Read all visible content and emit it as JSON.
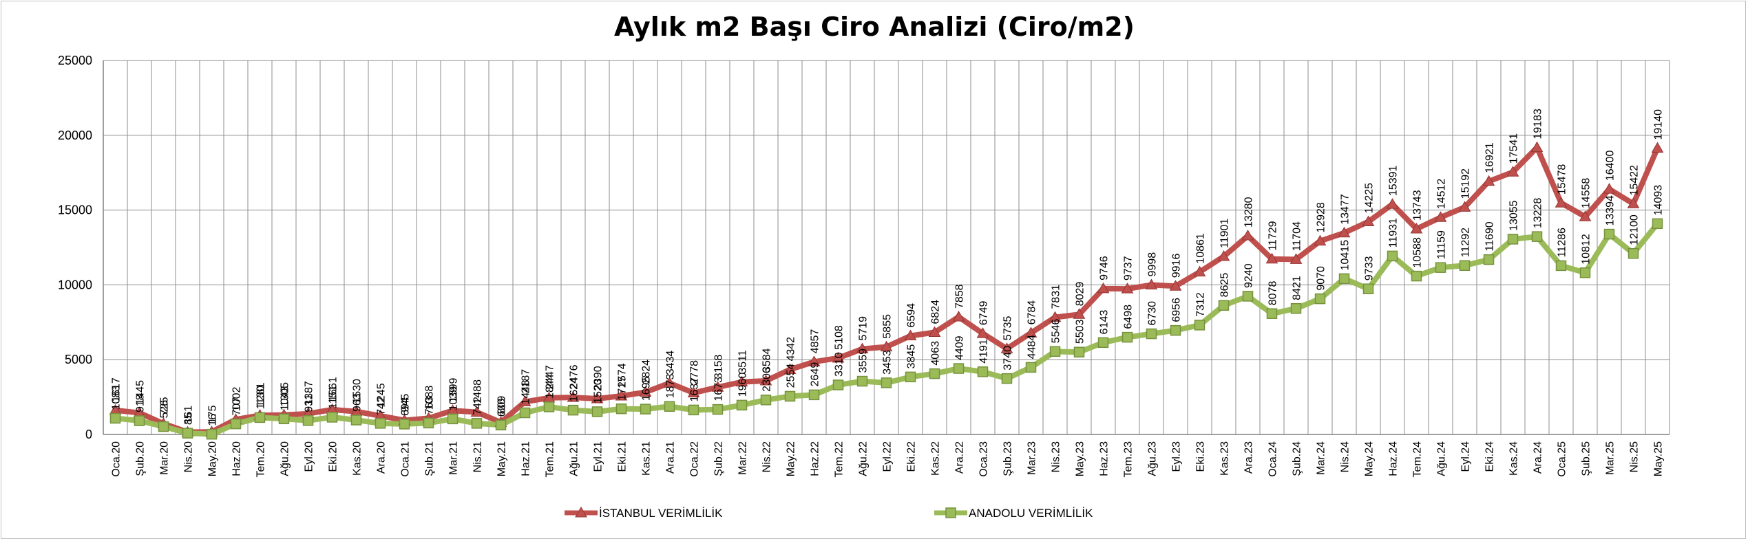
{
  "chart_data": {
    "type": "line",
    "title": "Aylık m2 Başı Ciro Analizi (Ciro/m2)",
    "xlabel": "",
    "ylabel": "",
    "ylim": [
      0,
      25000
    ],
    "y_ticks": [
      "0",
      "5000",
      "10000",
      "15000",
      "20000",
      "25000"
    ],
    "grid": true,
    "legend_position": "bottom",
    "categories": [
      "Oca.20",
      "Şub.20",
      "Mar.20",
      "Nis.20",
      "May.20",
      "Haz.20",
      "Tem.20",
      "Ağu.20",
      "Eyl.20",
      "Eki.20",
      "Kas.20",
      "Ara.20",
      "Oca.21",
      "Şub.21",
      "Mar.21",
      "Nis.21",
      "May.21",
      "Haz.21",
      "Tem.21",
      "Ağu.21",
      "Eyl.21",
      "Eki.21",
      "Kas.21",
      "Ara.21",
      "Oca.22",
      "Şub.22",
      "Mar.22",
      "Nis.22",
      "May.22",
      "Haz.22",
      "Tem.22",
      "Ağu.22",
      "Eyl.22",
      "Eki.22",
      "Kas.22",
      "Ara.22",
      "Oca.23",
      "Şub.23",
      "Mar.23",
      "Nis.23",
      "May.23",
      "Haz.23",
      "Tem.23",
      "Ağu.23",
      "Eyl.23",
      "Eki.23",
      "Kas.23",
      "Ara.23",
      "Oca.24",
      "Şub.24",
      "Mar.24",
      "Nis.24",
      "May.24",
      "Haz.24",
      "Tem.24",
      "Ağu.24",
      "Eyl.24",
      "Eki.24",
      "Kas.24",
      "Ara.24",
      "Oca.25",
      "Şub.25",
      "Mar.25",
      "Nis.25",
      "May.25"
    ],
    "series": [
      {
        "name": "İSTANBUL VERİMLİLİK",
        "color": "#c0504d",
        "marker": "triangle",
        "values": [
          1617,
          1445,
          725,
          161,
          175,
          1002,
          1281,
          1305,
          1387,
          1661,
          1530,
          1245,
          945,
          1088,
          1599,
          1488,
          809,
          2187,
          2447,
          2476,
          2390,
          2574,
          2824,
          3434,
          2778,
          3158,
          3511,
          3584,
          4342,
          4857,
          5108,
          5719,
          5855,
          6594,
          6824,
          7858,
          6749,
          5735,
          6784,
          7831,
          8029,
          9746,
          9737,
          9998,
          9916,
          10861,
          11901,
          13280,
          11729,
          11704,
          12928,
          13477,
          14225,
          15391,
          13743,
          14512,
          15192,
          16921,
          17541,
          19183,
          15478,
          14558,
          16400,
          15422,
          19140
        ]
      },
      {
        "name": "ANADOLU VERİMLİLİK",
        "color": "#9bbb59",
        "marker": "square",
        "values": [
          1083,
          918,
          526,
          85,
          16,
          707,
          1130,
          1043,
          931,
          1151,
          963,
          742,
          694,
          763,
          1039,
          742,
          630,
          1448,
          1844,
          1624,
          1520,
          1717,
          1695,
          1873,
          1637,
          1673,
          1960,
          2306,
          2554,
          2649,
          3310,
          3559,
          3453,
          3845,
          4063,
          4409,
          4191,
          3740,
          4484,
          5546,
          5503,
          6143,
          6498,
          6730,
          6956,
          7312,
          8625,
          9240,
          8078,
          8421,
          9070,
          10415,
          9733,
          11931,
          10588,
          11159,
          11292,
          11690,
          13055,
          13228,
          11286,
          10812,
          13394,
          12100,
          14093
        ]
      }
    ],
    "data_labels": {
      "istanbul": [
        "1617",
        "1445",
        "725",
        "161",
        "175",
        "1002",
        "1281",
        "1305",
        "1387",
        "1661",
        "1530",
        "1245",
        "945",
        "1088",
        "1599",
        "1488",
        "809",
        "2187",
        "2447",
        "2476",
        "2390",
        "2574",
        "2824",
        "3434",
        "2778",
        "3158",
        "3511",
        "3584",
        "4342",
        "4857",
        "5108",
        "5719",
        "5855",
        "6594",
        "6824",
        "7858",
        "6749",
        "5735",
        "6784",
        "7831",
        "8029",
        "9746",
        "9737",
        "9998",
        "9916",
        "10861",
        "11901",
        "13280",
        "11729",
        "11704",
        "12928",
        "13477",
        "14225",
        "15391",
        "13743",
        "14512",
        "15192",
        "16921",
        "17541",
        "19183",
        "15478",
        "14558",
        "16400",
        "15422",
        "19140"
      ],
      "anadolu": [
        "1083",
        "918",
        "526",
        "85",
        "16",
        "707",
        "1130",
        "1043",
        "931",
        "1151",
        "963",
        "742",
        "694",
        "763",
        "1039",
        "742",
        "630",
        "1448",
        "1844",
        "1624",
        "1520",
        "1717",
        "1695",
        "1873",
        "1637",
        "1673",
        "1960",
        "2306",
        "2554",
        "2649",
        "3310",
        "3559",
        "3453",
        "3845",
        "4063",
        "4409",
        "4191",
        "3740",
        "4484",
        "5546",
        "5503",
        "6143",
        "6498",
        "6730",
        "6956",
        "7312",
        "8625",
        "9240",
        "8078",
        "8421",
        "9070",
        "10415",
        "9733",
        "11931",
        "10588",
        "11159",
        "11292",
        "11690",
        "13055",
        "13228",
        "11286",
        "10812",
        "13394",
        "12100",
        "14093"
      ]
    }
  }
}
